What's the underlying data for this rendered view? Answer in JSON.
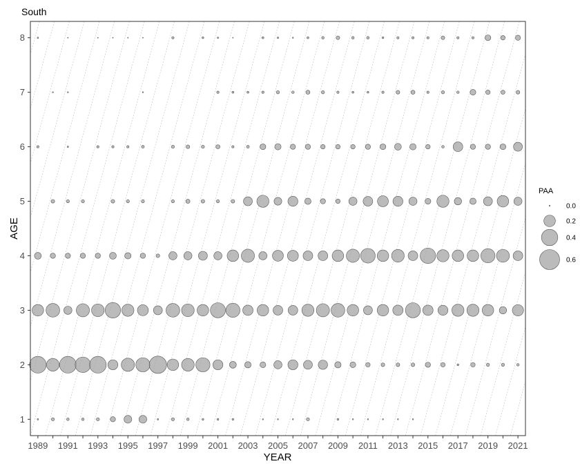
{
  "chart_data": {
    "type": "scatter",
    "title": "South",
    "xlabel": "YEAR",
    "ylabel": "AGE",
    "xlim": [
      1988.5,
      2021.5
    ],
    "ylim": [
      0.7,
      8.3
    ],
    "x_ticks": [
      1989,
      1991,
      1993,
      1995,
      1997,
      1999,
      2001,
      2003,
      2005,
      2007,
      2009,
      2011,
      2013,
      2015,
      2017,
      2019,
      2021
    ],
    "y_ticks": [
      1,
      2,
      3,
      4,
      5,
      6,
      7,
      8
    ],
    "years": [
      1989,
      1990,
      1991,
      1992,
      1993,
      1994,
      1995,
      1996,
      1997,
      1998,
      1999,
      2000,
      2001,
      2002,
      2003,
      2004,
      2005,
      2006,
      2007,
      2008,
      2009,
      2010,
      2011,
      2012,
      2013,
      2014,
      2015,
      2016,
      2017,
      2018,
      2019,
      2020,
      2021
    ],
    "ages": [
      1,
      2,
      3,
      4,
      5,
      6,
      7,
      8
    ],
    "size_variable": "PAA",
    "legend": {
      "title": "PAA",
      "values": [
        0.0,
        0.2,
        0.4,
        0.6
      ],
      "labels": [
        "0.0",
        "0.2",
        "0.4",
        "0.6"
      ],
      "position": "right"
    },
    "grid": false,
    "cohort_lines": true,
    "colors": {
      "bubble_fill": "#9e9e9e",
      "bubble_stroke": "#555555"
    },
    "values_by_age": {
      "1": [
        0.003,
        0.015,
        0.01,
        0.01,
        0.015,
        0.04,
        0.09,
        0.09,
        0.003,
        0.015,
        0.01,
        0.005,
        0.005,
        0.005,
        0,
        0.002,
        0.002,
        0.002,
        0.015,
        0,
        0.005,
        0.002,
        0.002,
        0.002,
        0.002,
        0.002,
        0,
        0,
        0,
        0,
        0,
        0,
        0
      ],
      "2": [
        0.42,
        0.24,
        0.42,
        0.36,
        0.42,
        0.15,
        0.26,
        0.3,
        0.45,
        0.2,
        0.24,
        0.3,
        0.15,
        0.07,
        0.06,
        0.05,
        0.1,
        0.15,
        0.12,
        0.13,
        0.06,
        0.05,
        0.03,
        0.02,
        0.02,
        0.02,
        0.04,
        0.03,
        0.005,
        0.03,
        0.015,
        0.015,
        0.01
      ],
      "3": [
        0.2,
        0.28,
        0.1,
        0.26,
        0.24,
        0.36,
        0.22,
        0.18,
        0.12,
        0.28,
        0.24,
        0.2,
        0.34,
        0.3,
        0.16,
        0.2,
        0.14,
        0.14,
        0.22,
        0.26,
        0.28,
        0.2,
        0.12,
        0.2,
        0.16,
        0.34,
        0.16,
        0.15,
        0.22,
        0.22,
        0.2,
        0.08,
        0.19
      ],
      "4": [
        0.07,
        0.04,
        0.04,
        0.04,
        0.04,
        0.07,
        0.06,
        0.04,
        0.02,
        0.1,
        0.1,
        0.12,
        0.1,
        0.2,
        0.26,
        0.1,
        0.18,
        0.18,
        0.14,
        0.14,
        0.2,
        0.26,
        0.32,
        0.2,
        0.24,
        0.14,
        0.36,
        0.22,
        0.2,
        0.2,
        0.3,
        0.25,
        0.14
      ],
      "5": [
        0,
        0.02,
        0.015,
        0.015,
        0,
        0.02,
        0.015,
        0.015,
        0,
        0.015,
        0.025,
        0.02,
        0.015,
        0.02,
        0.12,
        0.22,
        0.09,
        0.15,
        0.06,
        0.04,
        0.03,
        0.1,
        0.14,
        0.18,
        0.15,
        0.1,
        0.05,
        0.22,
        0.08,
        0.06,
        0.12,
        0.2,
        0.1
      ],
      "6": [
        0.008,
        0,
        0.003,
        0,
        0.008,
        0.008,
        0.008,
        0.012,
        0,
        0.015,
        0.02,
        0.015,
        0.025,
        0.008,
        0.012,
        0.05,
        0.06,
        0.04,
        0.04,
        0.03,
        0.03,
        0.03,
        0.04,
        0.05,
        0.07,
        0.06,
        0.03,
        0.01,
        0.14,
        0.04,
        0.04,
        0.05,
        0.12
      ],
      "7": [
        0,
        0.002,
        0.002,
        0,
        0,
        0,
        0,
        0.002,
        0,
        0,
        0,
        0,
        0.008,
        0.006,
        0.006,
        0.008,
        0.015,
        0.01,
        0.025,
        0.015,
        0.008,
        0.006,
        0.005,
        0.008,
        0.02,
        0.025,
        0.008,
        0.015,
        0.01,
        0.05,
        0.03,
        0.025,
        0.02
      ],
      "8": [
        0.003,
        0,
        0.001,
        0,
        0.001,
        0.001,
        0.001,
        0.001,
        0,
        0.008,
        0,
        0.005,
        0.003,
        0.001,
        0,
        0.006,
        0.004,
        0.002,
        0.006,
        0.01,
        0.02,
        0.01,
        0.01,
        0.005,
        0.008,
        0.008,
        0.008,
        0.02,
        0.008,
        0.008,
        0.05,
        0.03,
        0.04
      ]
    }
  }
}
